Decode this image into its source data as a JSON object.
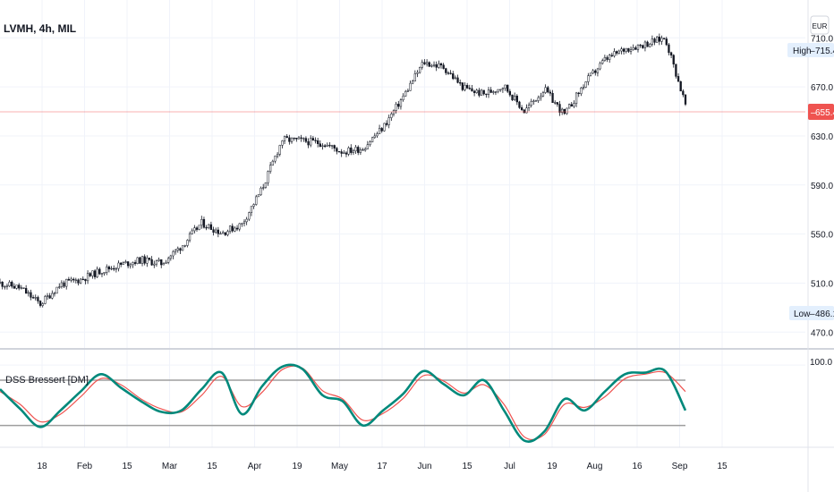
{
  "header": {
    "symbol_title": "LVMH, 4h, MIL",
    "currency": "EUR"
  },
  "indicator": {
    "label": "DSS Bressert [DM]"
  },
  "price_axis": {
    "ticks": [
      "710.0",
      "670.0",
      "630.0",
      "590.0",
      "550.0",
      "510.0",
      "470.0"
    ],
    "high_label": "High",
    "high_value": "715.4",
    "low_label": "Low",
    "low_value": "486.1",
    "last_value": "655.4",
    "last_color": "#ef5350"
  },
  "indicator_axis": {
    "ticks": [
      "100.0"
    ]
  },
  "time_axis": {
    "ticks": [
      "18",
      "Feb",
      "15",
      "Mar",
      "15",
      "Apr",
      "19",
      "May",
      "17",
      "Jun",
      "15",
      "Jul",
      "19",
      "Aug",
      "16",
      "Sep",
      "15"
    ]
  },
  "colors": {
    "candles": "#131722",
    "dss": "#00897b",
    "signal": "#ef5350",
    "levels": "#9e9e9e",
    "grid": "#f0f3fa"
  },
  "chart_data": [
    {
      "type": "line",
      "title": "LVMH, 4h, MIL",
      "x": [
        "Jan 12",
        "Jan 18",
        "Jan 25",
        "Feb 1",
        "Feb 8",
        "Feb 15",
        "Feb 22",
        "Mar 1",
        "Mar 8",
        "Mar 15",
        "Mar 22",
        "Apr 1",
        "Apr 8",
        "Apr 12",
        "Apr 19",
        "Apr 26",
        "May 3",
        "May 10",
        "May 17",
        "May 24",
        "May 31",
        "Jun 7",
        "Jun 15",
        "Jun 21",
        "Jun 28",
        "Jul 5",
        "Jul 9",
        "Jul 12",
        "Jul 19",
        "Jul 26",
        "Aug 2",
        "Aug 9",
        "Aug 13",
        "Aug 16",
        "Aug 18"
      ],
      "series": [
        {
          "values": [
            510,
            506,
            493,
            509,
            513,
            520,
            525,
            529,
            526,
            540,
            559,
            551,
            558,
            587,
            627,
            626,
            624,
            617,
            620,
            637,
            662,
            690,
            686,
            669,
            664,
            671,
            650,
            668,
            647,
            673,
            692,
            701,
            705,
            710,
            655.4
          ]
        }
      ],
      "high": 715.4,
      "low": 486.1,
      "last": 655.4,
      "ylim": [
        460,
        735
      ]
    },
    {
      "type": "line",
      "title": "DSS Bressert [DM]",
      "x": [
        "Jan 12",
        "Jan 18",
        "Jan 25",
        "Feb 1",
        "Feb 8",
        "Feb 15",
        "Feb 22",
        "Mar 1",
        "Mar 8",
        "Mar 15",
        "Mar 22",
        "Apr 1",
        "Apr 8",
        "Apr 12",
        "Apr 19",
        "Apr 26",
        "May 3",
        "May 10",
        "May 17",
        "May 24",
        "May 31",
        "Jun 7",
        "Jun 15",
        "Jun 21",
        "Jun 28",
        "Jul 5",
        "Jul 9",
        "Jul 12",
        "Jul 19",
        "Jul 26",
        "Aug 2",
        "Aug 9",
        "Aug 13",
        "Aug 16",
        "Aug 18"
      ],
      "series": [
        {
          "values": [
            68,
            42,
            18,
            40,
            65,
            88,
            70,
            52,
            38,
            40,
            68,
            90,
            35,
            72,
            98,
            95,
            60,
            52,
            20,
            40,
            62,
            92,
            75,
            60,
            80,
            40,
            0,
            12,
            55,
            40,
            65,
            88,
            90,
            92,
            40
          ]
        },
        {
          "values": [
            65,
            48,
            25,
            35,
            58,
            82,
            74,
            55,
            42,
            38,
            60,
            85,
            45,
            64,
            94,
            96,
            66,
            55,
            27,
            36,
            56,
            86,
            79,
            63,
            74,
            48,
            5,
            8,
            48,
            44,
            58,
            82,
            88,
            90,
            65
          ]
        }
      ],
      "levels": [
        80,
        20
      ],
      "ylim": [
        -3,
        118
      ]
    }
  ]
}
